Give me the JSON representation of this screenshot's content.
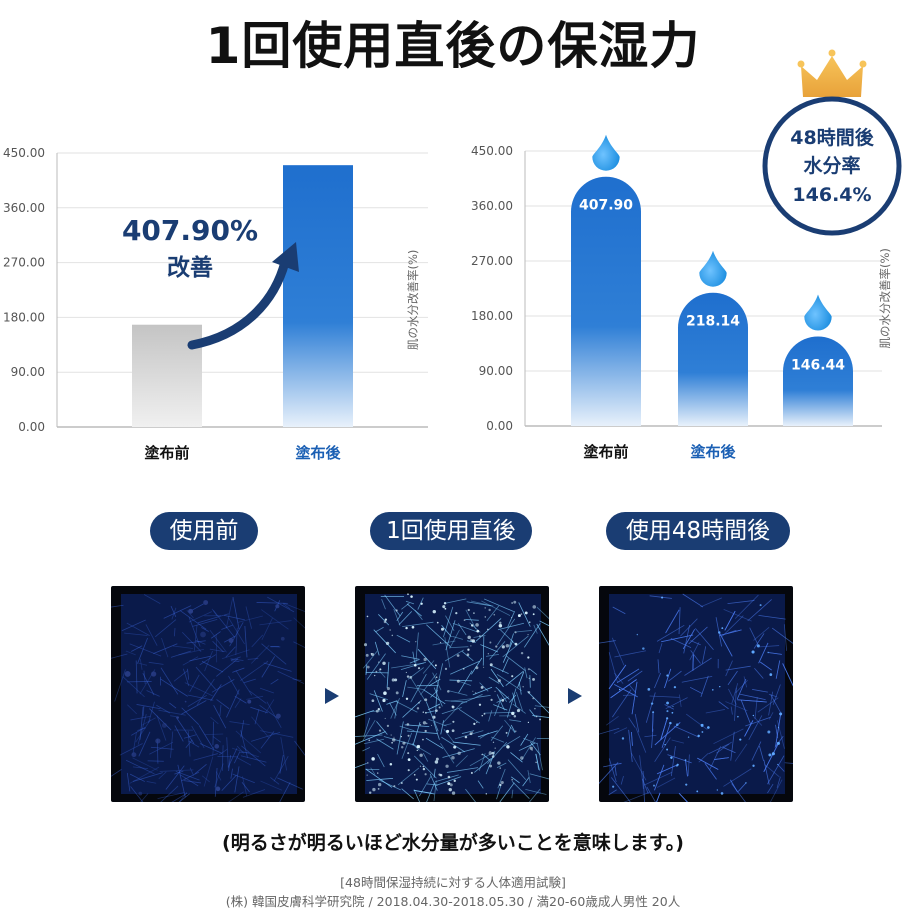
{
  "title": "1回使用直後の保湿力",
  "chart_data": [
    {
      "type": "bar",
      "categories": [
        "塗布前",
        "塗布後"
      ],
      "values": [
        168,
        430
      ],
      "ylim": [
        0,
        450
      ],
      "yticks": [
        "0.00",
        "90.00",
        "180.00",
        "270.00",
        "360.00",
        "450.00"
      ],
      "ylabel": "肌の水分改善率(%)",
      "annotation": {
        "value": "407.90%",
        "label": "改善"
      },
      "colors": [
        "#c9c9c9",
        "#1f6fce"
      ]
    },
    {
      "type": "bar",
      "categories": [
        "塗布前",
        "塗布後",
        ""
      ],
      "values": [
        407.9,
        218.14,
        146.44
      ],
      "value_labels": [
        "407.90",
        "218.14",
        "146.44"
      ],
      "ylim": [
        0,
        450
      ],
      "yticks": [
        "0.00",
        "90.00",
        "180.00",
        "270.00",
        "360.00",
        "450.00"
      ],
      "ylabel": "肌の水分改善率(%)",
      "badge": {
        "line1": "48時間後",
        "line2": "水分率",
        "line3": "146.4%"
      },
      "colors": [
        "#1f6fce"
      ]
    }
  ],
  "stages": [
    "使用前",
    "1回使用直後",
    "使用48時間後"
  ],
  "caption": "(明るさが明るいほど水分量が多いことを意味します。)",
  "note_line1": "[48時間保湿持続に対する人体適用試験]",
  "note_line2": "(株) 韓国皮膚科学研究院 / 2018.04.30-2018.05.30 / 満20-60歳成人男性 20人"
}
